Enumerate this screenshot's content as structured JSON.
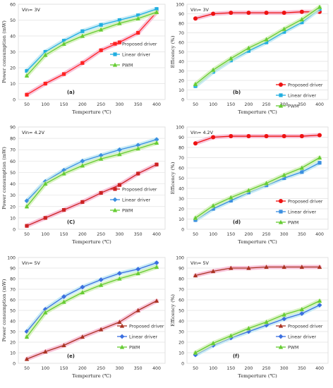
{
  "chart_data": [
    {
      "id": "a",
      "type": "line",
      "panel_label": "(a)",
      "vin_label": "Vin= 3V",
      "xlabel": "Temperture (℃)",
      "ylabel": "Power consumption (mW)",
      "categories": [
        "50",
        "100",
        "150",
        "200",
        "250",
        "300",
        "350",
        "400"
      ],
      "ylim": [
        0,
        60
      ],
      "yticks": [
        "0",
        "10",
        "20",
        "30",
        "40",
        "50",
        "60"
      ],
      "grid": true,
      "legend_placement": "center-right",
      "series": [
        {
          "name": "Proposed driver",
          "color": "#ff2222",
          "marker": "square",
          "glow": "#f7b8d2",
          "values": [
            3,
            10,
            16,
            23,
            31,
            36,
            42,
            55
          ]
        },
        {
          "name": "Linear driver",
          "color": "#20aee0",
          "marker": "square",
          "glow": "#bfe8f5",
          "values": [
            18,
            30,
            37,
            43,
            47,
            50,
            53,
            57
          ]
        },
        {
          "name": "PWM",
          "color": "#66cc33",
          "marker": "triangle",
          "glow": "#d4f0b8",
          "values": [
            15,
            28,
            35,
            40,
            44,
            48,
            51,
            55
          ]
        }
      ]
    },
    {
      "id": "b",
      "type": "line",
      "panel_label": "(b)",
      "vin_label": "Vin= 3V",
      "xlabel": "Temperture (℃)",
      "ylabel": "Efficency (%)",
      "categories": [
        "50",
        "100",
        "150",
        "200",
        "250",
        "300",
        "350",
        "400"
      ],
      "ylim": [
        0,
        100
      ],
      "yticks": [
        "0",
        "10",
        "20",
        "30",
        "40",
        "50",
        "60",
        "70",
        "80",
        "90",
        "100"
      ],
      "grid": true,
      "legend_placement": "bottom-right",
      "series": [
        {
          "name": "Proposed driver",
          "color": "#ee1111",
          "marker": "circle",
          "glow": "#f7b8d2",
          "values": [
            85,
            90,
            91,
            91,
            91,
            91,
            92,
            92
          ]
        },
        {
          "name": "Linear driver",
          "color": "#20aee0",
          "marker": "square",
          "glow": "#bfe8f5",
          "values": [
            14,
            29,
            41,
            51,
            60,
            71,
            81,
            95
          ]
        },
        {
          "name": "PWM",
          "color": "#66cc33",
          "marker": "triangle",
          "glow": "#d4f0b8",
          "values": [
            16,
            31,
            43,
            54,
            63,
            74,
            84,
            97
          ]
        }
      ]
    },
    {
      "id": "c",
      "type": "line",
      "panel_label": "(C)",
      "vin_label": "Vin= 4.2V",
      "xlabel": "Temperture (℃)",
      "ylabel": "Power consumption (mW)",
      "categories": [
        "50",
        "100",
        "150",
        "200",
        "250",
        "300",
        "350",
        "400"
      ],
      "ylim": [
        0,
        90
      ],
      "yticks": [
        "0",
        "10",
        "20",
        "30",
        "40",
        "50",
        "60",
        "70",
        "80",
        "90"
      ],
      "grid": true,
      "legend_placement": "center-right",
      "series": [
        {
          "name": "Proposed driver",
          "color": "#cc2222",
          "marker": "square",
          "glow": "#f7b8d2",
          "values": [
            3,
            10,
            17,
            24,
            32,
            39,
            49,
            57
          ]
        },
        {
          "name": "Linear driver",
          "color": "#3b8fe0",
          "marker": "diamond",
          "glow": "#bfe8f5",
          "values": [
            25,
            42,
            52,
            60,
            65,
            70,
            74,
            79
          ]
        },
        {
          "name": "PWM",
          "color": "#66cc33",
          "marker": "triangle",
          "glow": "#d4f0b8",
          "values": [
            20,
            40,
            49,
            56,
            62,
            66,
            71,
            76
          ]
        }
      ]
    },
    {
      "id": "d",
      "type": "line",
      "panel_label": "(d)",
      "vin_label": "Vin= 4.2V",
      "xlabel": "Temperture (℃)",
      "ylabel": "Efficency (%)",
      "categories": [
        "50",
        "100",
        "150",
        "200",
        "250",
        "300",
        "350",
        "400"
      ],
      "ylim": [
        0,
        100
      ],
      "yticks": [
        "0",
        "10",
        "20",
        "30",
        "40",
        "50",
        "60",
        "70",
        "80",
        "90",
        "100"
      ],
      "grid": true,
      "legend_placement": "bottom-right",
      "series": [
        {
          "name": "Proposed driver",
          "color": "#ee1111",
          "marker": "circle",
          "glow": "#f7b8d2",
          "values": [
            84,
            90,
            91,
            91,
            91,
            91,
            91,
            92
          ]
        },
        {
          "name": "Linear driver",
          "color": "#3b8fe0",
          "marker": "square",
          "glow": "#bfe8f5",
          "values": [
            9,
            20,
            28,
            36,
            43,
            50,
            56,
            65
          ]
        },
        {
          "name": "PWM",
          "color": "#66cc33",
          "marker": "triangle",
          "glow": "#d4f0b8",
          "values": [
            11,
            23,
            31,
            38,
            45,
            53,
            60,
            70
          ]
        }
      ]
    },
    {
      "id": "e",
      "type": "line",
      "panel_label": "(e)",
      "vin_label": "Vin= 5V",
      "xlabel": "Temperture (℃)",
      "ylabel": "Power consumption (mW)",
      "categories": [
        "50",
        "100",
        "150",
        "200",
        "250",
        "300",
        "350",
        "400"
      ],
      "ylim": [
        0,
        100
      ],
      "yticks": [
        "0",
        "10",
        "20",
        "30",
        "40",
        "50",
        "60",
        "70",
        "80",
        "90",
        "100"
      ],
      "grid": true,
      "legend_placement": "bottom-right",
      "series": [
        {
          "name": "Proposed driver",
          "color": "#aa3322",
          "marker": "triangle",
          "glow": "#f7b8d2",
          "values": [
            4,
            11,
            17,
            25,
            32,
            39,
            50,
            59
          ]
        },
        {
          "name": "Linear driver",
          "color": "#3b6fe0",
          "marker": "diamond",
          "glow": "#bfe8f5",
          "values": [
            30,
            51,
            63,
            72,
            79,
            85,
            89,
            95
          ]
        },
        {
          "name": "PWM",
          "color": "#66cc33",
          "marker": "triangle",
          "glow": "#d4f0b8",
          "values": [
            25,
            48,
            58,
            67,
            74,
            80,
            85,
            91
          ]
        }
      ]
    },
    {
      "id": "f",
      "type": "line",
      "panel_label": "(f)",
      "vin_label": "Vin= 5V",
      "xlabel": "Temperture (℃)",
      "ylabel": "Efficency (%)",
      "categories": [
        "50",
        "100",
        "150",
        "200",
        "250",
        "300",
        "350",
        "400"
      ],
      "ylim": [
        0,
        100
      ],
      "yticks": [
        "0",
        "10",
        "20",
        "30",
        "40",
        "50",
        "60",
        "70",
        "80",
        "90",
        "100"
      ],
      "grid": true,
      "legend_placement": "bottom-right",
      "series": [
        {
          "name": "Proposed driver",
          "color": "#aa3322",
          "marker": "triangle",
          "glow": "#f7b8d2",
          "values": [
            83,
            87,
            90,
            90,
            91,
            91,
            91,
            91
          ]
        },
        {
          "name": "Linear driver",
          "color": "#3b6fe0",
          "marker": "diamond",
          "glow": "#bfe8f5",
          "values": [
            8,
            17,
            24,
            30,
            36,
            42,
            47,
            55
          ]
        },
        {
          "name": "PWM",
          "color": "#66cc33",
          "marker": "triangle",
          "glow": "#d4f0b8",
          "values": [
            10,
            19,
            26,
            33,
            39,
            46,
            51,
            59
          ]
        }
      ]
    }
  ]
}
